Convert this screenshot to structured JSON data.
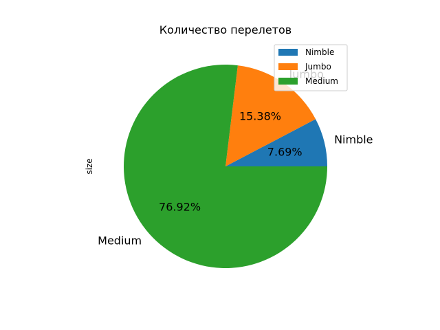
{
  "chart_data": {
    "type": "pie",
    "title": "Количество перелетов",
    "ylabel": "size",
    "categories": [
      "Nimble",
      "Jumbo",
      "Medium"
    ],
    "values": [
      7.69,
      15.38,
      76.92
    ],
    "value_labels": [
      "7.69%",
      "15.38%",
      "76.92%"
    ],
    "colors": [
      "#1f77b4",
      "#ff7f0e",
      "#2ca02c"
    ],
    "start_angle_deg": 0,
    "direction": "counterclockwise",
    "legend": {
      "position": "upper-right",
      "entries": [
        "Nimble",
        "Jumbo",
        "Medium"
      ]
    }
  }
}
